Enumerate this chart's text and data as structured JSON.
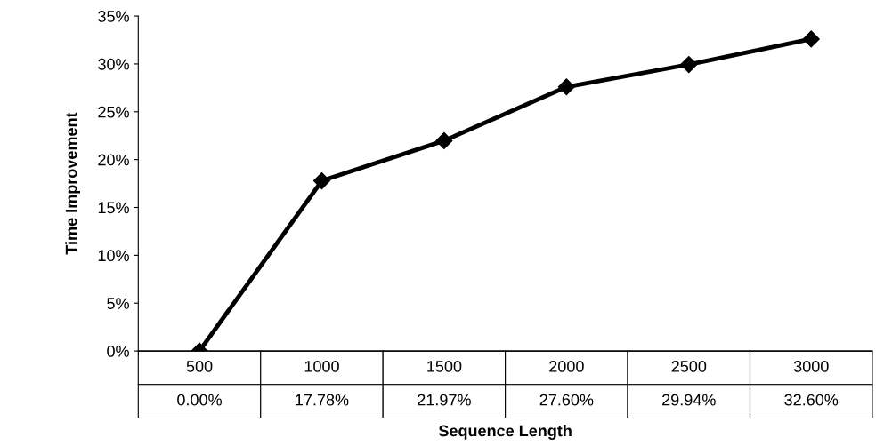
{
  "chart_data": {
    "type": "line",
    "xlabel": "Sequence Length",
    "ylabel": "Time Improvement",
    "categories": [
      "500",
      "1000",
      "1500",
      "2000",
      "2500",
      "3000"
    ],
    "series": [
      {
        "color": "#000000",
        "values": [
          0,
          17.78,
          21.97,
          27.6,
          29.94,
          32.6
        ],
        "value_labels": [
          "0.00%",
          "17.78%",
          "21.97%",
          "27.60%",
          "29.94%",
          "32.60%"
        ]
      }
    ],
    "ylim": [
      0,
      35
    ],
    "yticks": [
      {
        "value": 0,
        "label": "0%"
      },
      {
        "value": 5,
        "label": "5%"
      },
      {
        "value": 10,
        "label": "10%"
      },
      {
        "value": 15,
        "label": "15%"
      },
      {
        "value": 20,
        "label": "20%"
      },
      {
        "value": 25,
        "label": "25%"
      },
      {
        "value": 30,
        "label": "30%"
      },
      {
        "value": 35,
        "label": "35%"
      }
    ],
    "grid": false,
    "marker": "diamond",
    "line_style": "solid"
  }
}
